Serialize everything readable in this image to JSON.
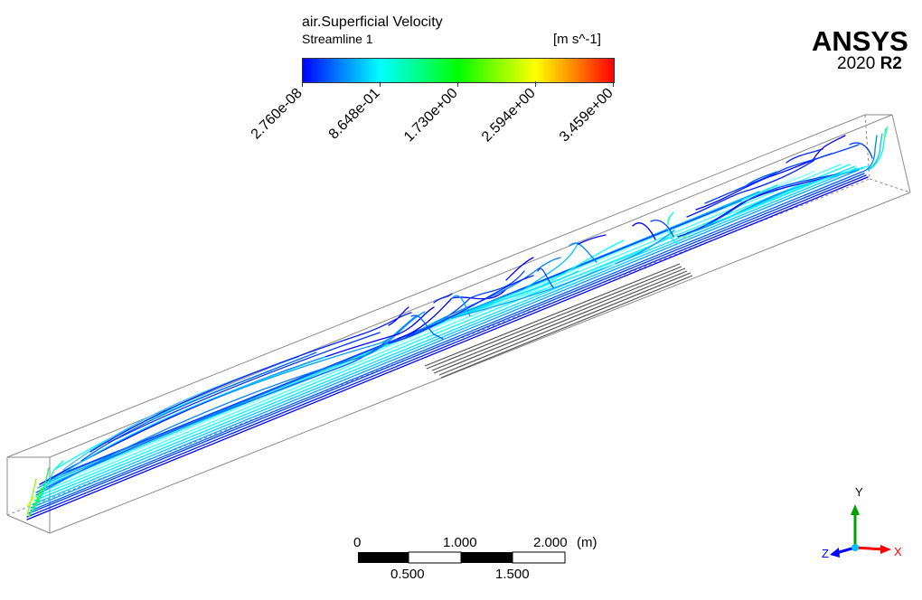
{
  "legend": {
    "title": "air.Superficial Velocity",
    "subtitle": "Streamline 1",
    "units": "[m s^-1]",
    "ticks": [
      "2.760e-08",
      "8.648e-01",
      "1.730e+00",
      "2.594e+00",
      "3.459e+00"
    ]
  },
  "logo": {
    "brand": "ANSYS",
    "version": "2020",
    "release": "R2"
  },
  "scale_bar": {
    "top_labels": [
      "0",
      "1.000",
      "2.000"
    ],
    "unit": "(m)",
    "bottom_labels": [
      "0.500",
      "1.500"
    ]
  },
  "axes": {
    "x": "X",
    "y": "Y",
    "z": "Z",
    "x_color": "#ff0000",
    "y_color": "#00a000",
    "z_color": "#0000ff"
  },
  "colors": {
    "low": "#0000ff",
    "mid": "#00ff00",
    "high": "#ff0000"
  }
}
